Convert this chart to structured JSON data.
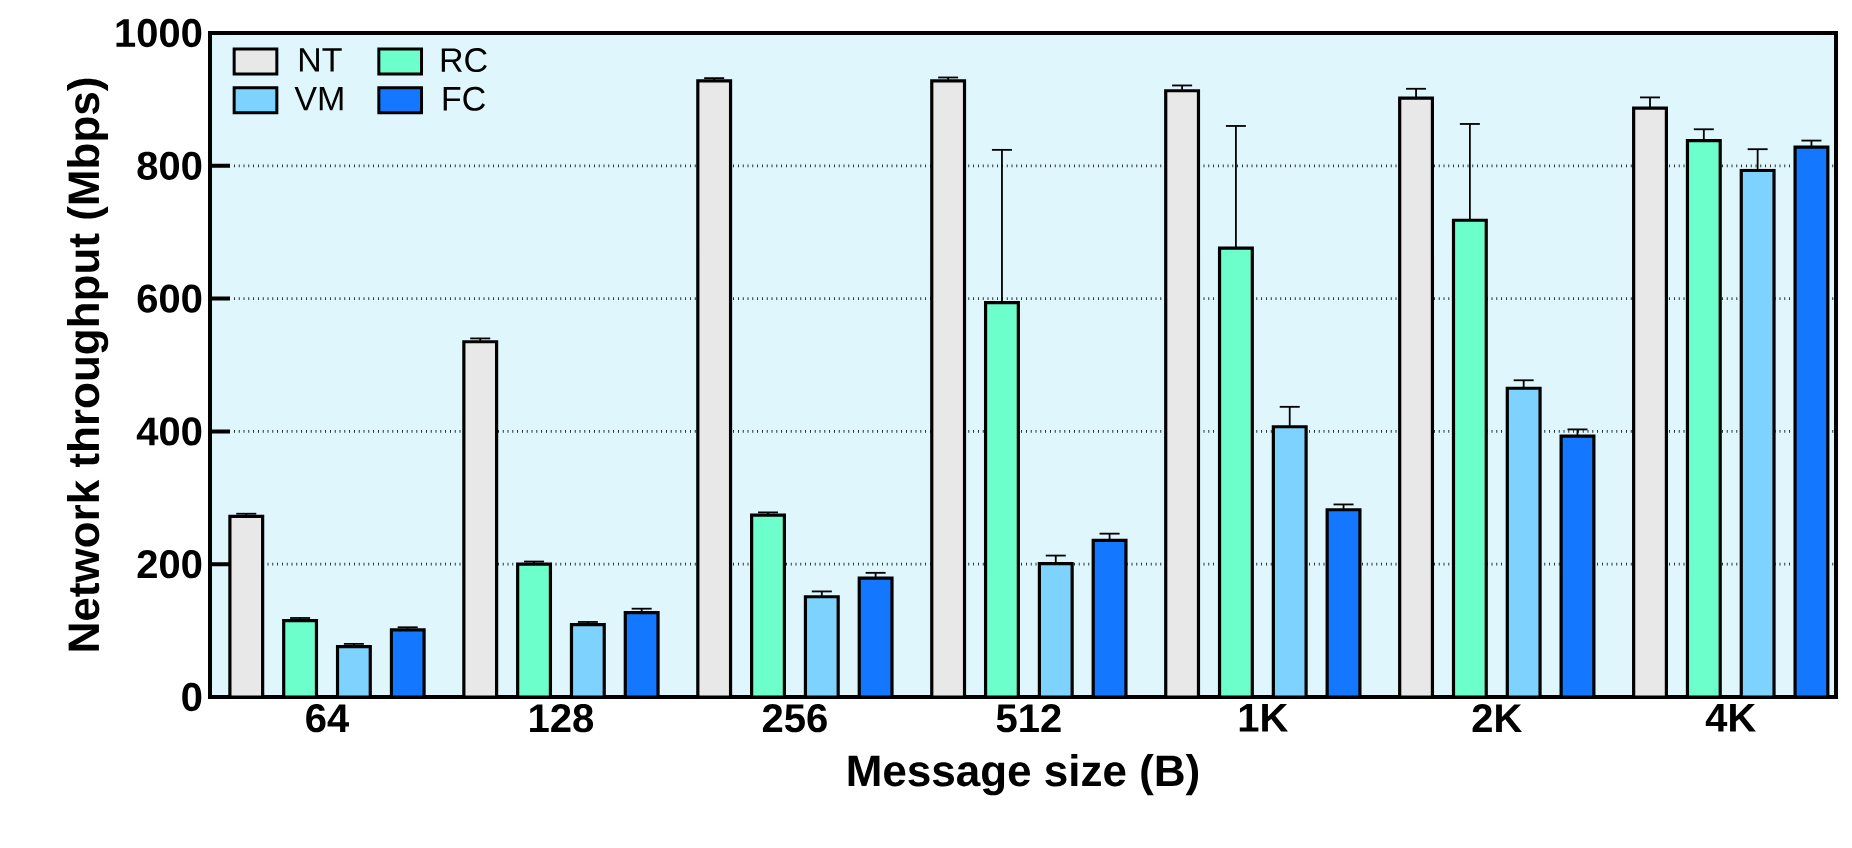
{
  "chart_data": {
    "type": "bar",
    "xlabel": "Message size (B)",
    "ylabel": "Network throughput (Mbps)",
    "categories": [
      "64",
      "128",
      "256",
      "512",
      "1K",
      "2K",
      "4K"
    ],
    "series": [
      {
        "name": "NT",
        "color": "#e8e8e8",
        "values": [
          272,
          535,
          928,
          928,
          913,
          902,
          887
        ],
        "errors": [
          4,
          5,
          4,
          5,
          8,
          14,
          16
        ]
      },
      {
        "name": "RC",
        "color": "#6cffcc",
        "values": [
          115,
          200,
          274,
          594,
          676,
          718,
          838
        ],
        "errors": [
          4,
          4,
          4,
          230,
          184,
          145,
          17
        ]
      },
      {
        "name": "VM",
        "color": "#7dd3fd",
        "values": [
          76,
          109,
          151,
          201,
          407,
          465,
          793
        ],
        "errors": [
          4,
          4,
          8,
          12,
          30,
          12,
          32
        ]
      },
      {
        "name": "FC",
        "color": "#1477ff",
        "values": [
          101,
          127,
          179,
          236,
          282,
          393,
          828
        ],
        "errors": [
          4,
          6,
          8,
          10,
          8,
          10,
          10
        ]
      }
    ],
    "ylim": [
      0,
      1000
    ],
    "yticks": [
      0,
      200,
      400,
      600,
      800,
      1000
    ],
    "grid": "y",
    "legend": "top left"
  }
}
